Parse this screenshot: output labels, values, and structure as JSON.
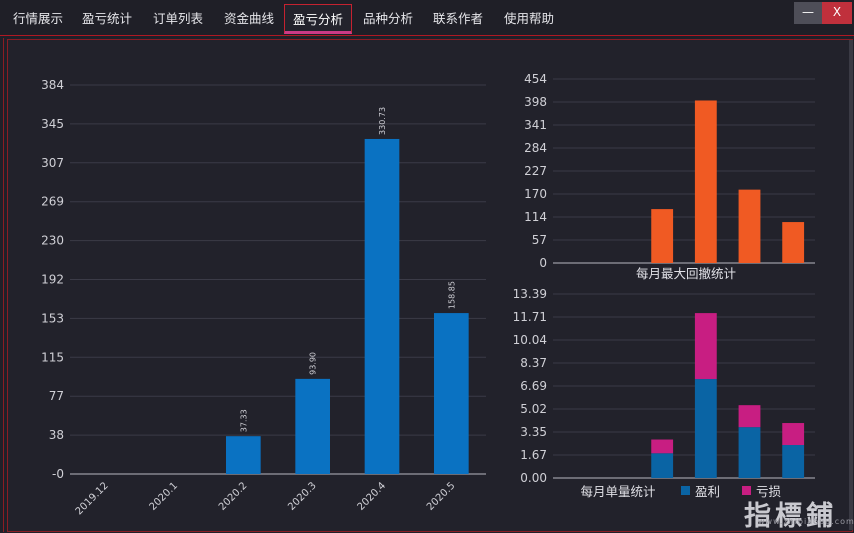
{
  "tabs": [
    {
      "label": "行情展示",
      "active": false
    },
    {
      "label": "盈亏统计",
      "active": false
    },
    {
      "label": "订单列表",
      "active": false
    },
    {
      "label": "资金曲线",
      "active": false
    },
    {
      "label": "盈亏分析",
      "active": true
    },
    {
      "label": "品种分析",
      "active": false
    },
    {
      "label": "联系作者",
      "active": false
    },
    {
      "label": "使用帮助",
      "active": false
    }
  ],
  "window": {
    "minimize_label": "—",
    "close_label": "X"
  },
  "watermark": {
    "text": "指標鋪",
    "sub": "www.zhibiaopu.com"
  },
  "chart_data": [
    {
      "type": "bar",
      "categories": [
        "2019.12",
        "2020.1",
        "2020.2",
        "2020.3",
        "2020.4",
        "2020.5"
      ],
      "values": [
        0,
        0,
        37.33,
        93.9,
        330.73,
        158.85
      ],
      "data_labels": [
        "",
        "",
        "37.33",
        "93.90",
        "330.73",
        "158.85"
      ],
      "yticks": [
        "-0",
        "38",
        "77",
        "115",
        "153",
        "192",
        "230",
        "269",
        "307",
        "345",
        "384"
      ],
      "ylim": [
        0,
        384
      ],
      "grid": true,
      "color": "#0a72c2"
    },
    {
      "type": "bar",
      "title": "每月最大回撤统计",
      "categories": [
        "2019.12",
        "2020.1",
        "2020.2",
        "2020.3",
        "2020.4",
        "2020.5"
      ],
      "values": [
        0,
        0,
        133,
        401,
        181,
        101
      ],
      "yticks": [
        "0",
        "57",
        "114",
        "170",
        "227",
        "284",
        "341",
        "398",
        "454"
      ],
      "ylim": [
        0,
        454
      ],
      "grid": true,
      "color": "#f05a23"
    },
    {
      "type": "bar",
      "title": "每月单量统计",
      "stacked": true,
      "categories": [
        "2019.12",
        "2020.1",
        "2020.2",
        "2020.3",
        "2020.4",
        "2020.5"
      ],
      "series": [
        {
          "name": "盈利",
          "values": [
            0,
            0,
            1.8,
            7.2,
            3.7,
            2.4
          ],
          "color": "#0a64a4"
        },
        {
          "name": "亏损",
          "values": [
            0,
            0,
            1.0,
            4.8,
            1.6,
            1.6
          ],
          "color": "#c81e82"
        }
      ],
      "yticks": [
        "0.00",
        "1.67",
        "3.35",
        "5.02",
        "6.69",
        "8.37",
        "10.04",
        "11.71",
        "13.39"
      ],
      "ylim": [
        0,
        13.39
      ],
      "grid": true,
      "legend": "bottom"
    }
  ]
}
